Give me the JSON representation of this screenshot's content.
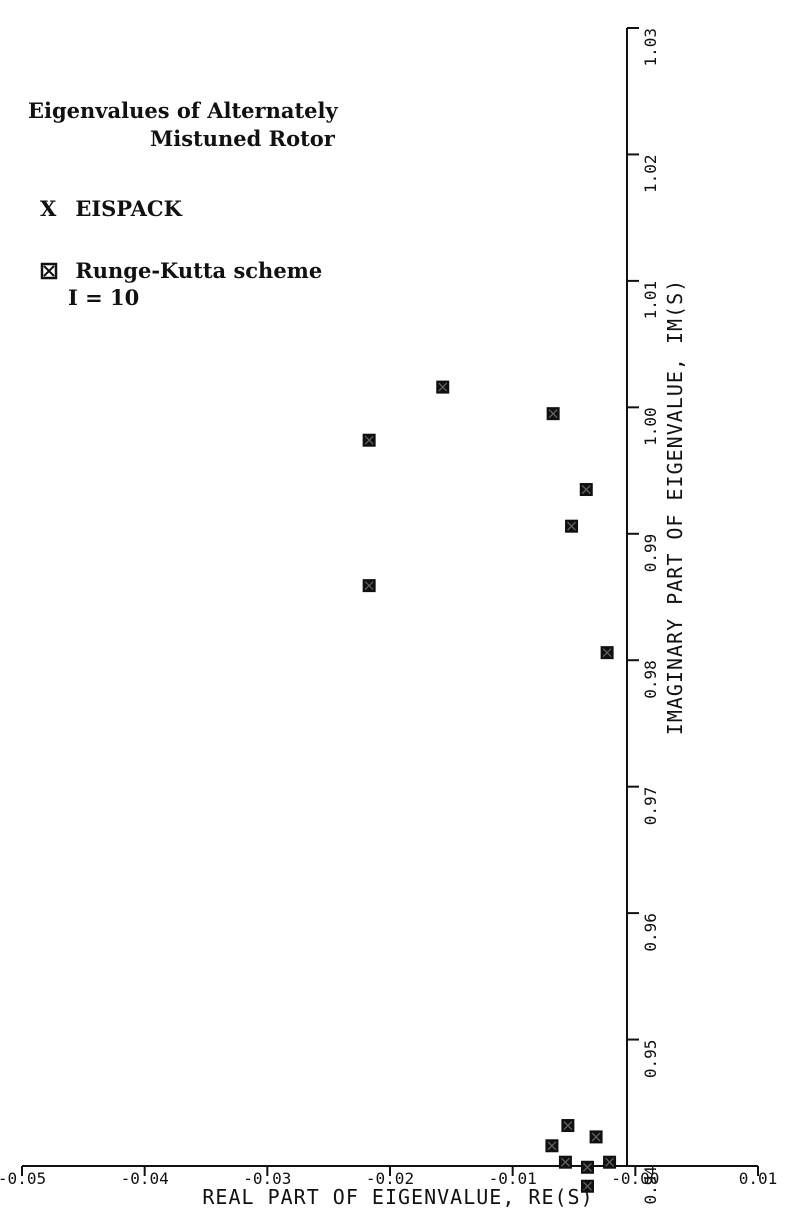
{
  "chart_data": {
    "type": "scatter",
    "title_line1": "Eigenvalues of Alternately",
    "title_line2": "Mistuned Rotor",
    "xlabel": "REAL PART OF EIGENVALUE, RE(S)",
    "ylabel": "IMAGINARY PART OF EIGENVALUE, IM(S)",
    "xlim": [
      -0.05,
      0.01
    ],
    "ylim": [
      0.94,
      1.03
    ],
    "xticks": [
      -0.05,
      -0.04,
      -0.03,
      -0.02,
      -0.01,
      0.0,
      0.01
    ],
    "xtick_labels": [
      "-0.05",
      "-0.04",
      "-0.03",
      "-0.02",
      "-0.01",
      "-0.00",
      "0.01"
    ],
    "yticks": [
      0.94,
      0.95,
      0.96,
      0.97,
      0.98,
      0.99,
      1.0,
      1.01,
      1.02,
      1.03
    ],
    "ytick_labels": [
      "0.94",
      "0.95",
      "0.96",
      "0.97",
      "0.98",
      "0.99",
      "1.00",
      "1.01",
      "1.02",
      "1.03"
    ],
    "grid": false,
    "legend": [
      {
        "symbol": "X",
        "label": "EISPACK"
      },
      {
        "symbol": "square",
        "label": "Runge-Kutta scheme",
        "sub": "I = 10"
      }
    ],
    "series": [
      {
        "name": "Runge-Kutta scheme",
        "marker": "square-x",
        "points": [
          {
            "x": -0.0157,
            "y": 1.0016
          },
          {
            "x": -0.0067,
            "y": 0.9995
          },
          {
            "x": -0.0217,
            "y": 0.9974
          },
          {
            "x": -0.004,
            "y": 0.9935
          },
          {
            "x": -0.0052,
            "y": 0.9906
          },
          {
            "x": -0.0217,
            "y": 0.9859
          },
          {
            "x": -0.0023,
            "y": 0.9806
          },
          {
            "x": -0.0055,
            "y": 0.9432
          },
          {
            "x": -0.0032,
            "y": 0.9423
          },
          {
            "x": -0.0068,
            "y": 0.9416
          },
          {
            "x": -0.0057,
            "y": 0.9403
          },
          {
            "x": -0.0039,
            "y": 0.9399
          },
          {
            "x": -0.0021,
            "y": 0.9403
          },
          {
            "x": -0.0039,
            "y": 0.9384
          }
        ]
      }
    ]
  }
}
